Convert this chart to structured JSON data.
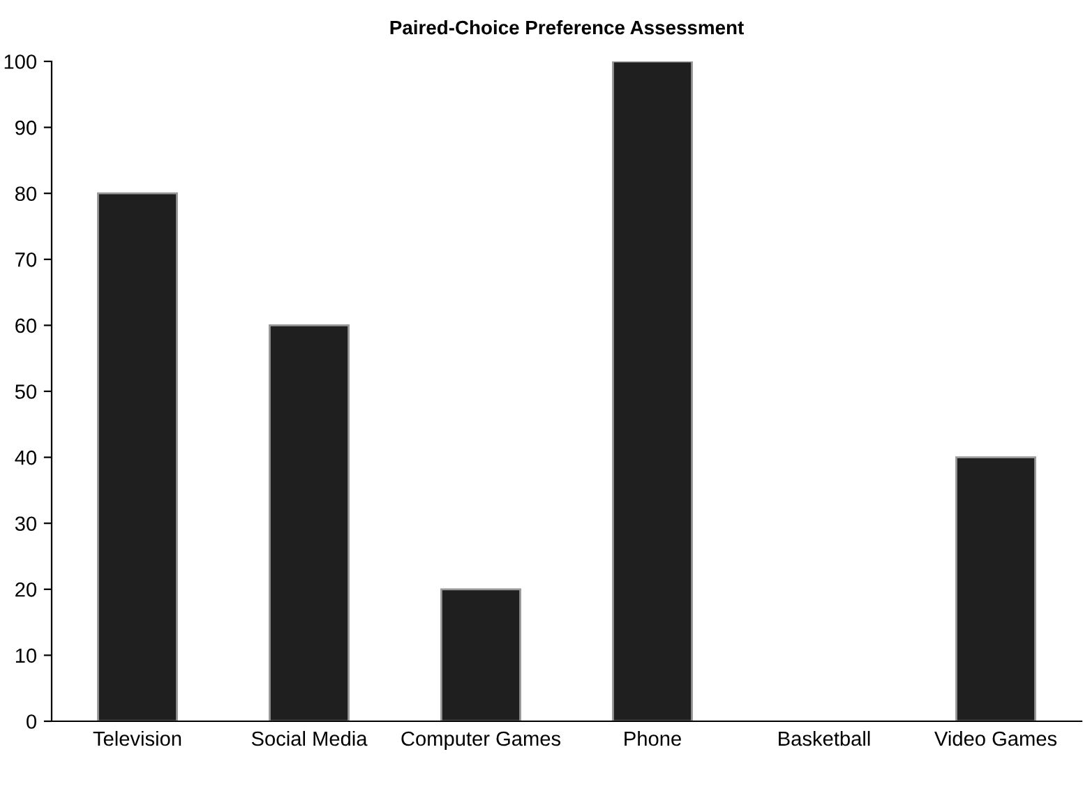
{
  "chart_data": {
    "type": "bar",
    "title": "Paired-Choice Preference Assessment",
    "categories": [
      "Television",
      "Social Media",
      "Computer Games",
      "Phone",
      "Basketball",
      "Video Games"
    ],
    "values": [
      80,
      60,
      20,
      100,
      0,
      40
    ],
    "color": "#1f1f1f",
    "ylim": [
      0,
      100
    ],
    "yticks": [
      0,
      10,
      20,
      30,
      40,
      50,
      60,
      70,
      80,
      90,
      100
    ],
    "grid": false,
    "legend": false
  }
}
